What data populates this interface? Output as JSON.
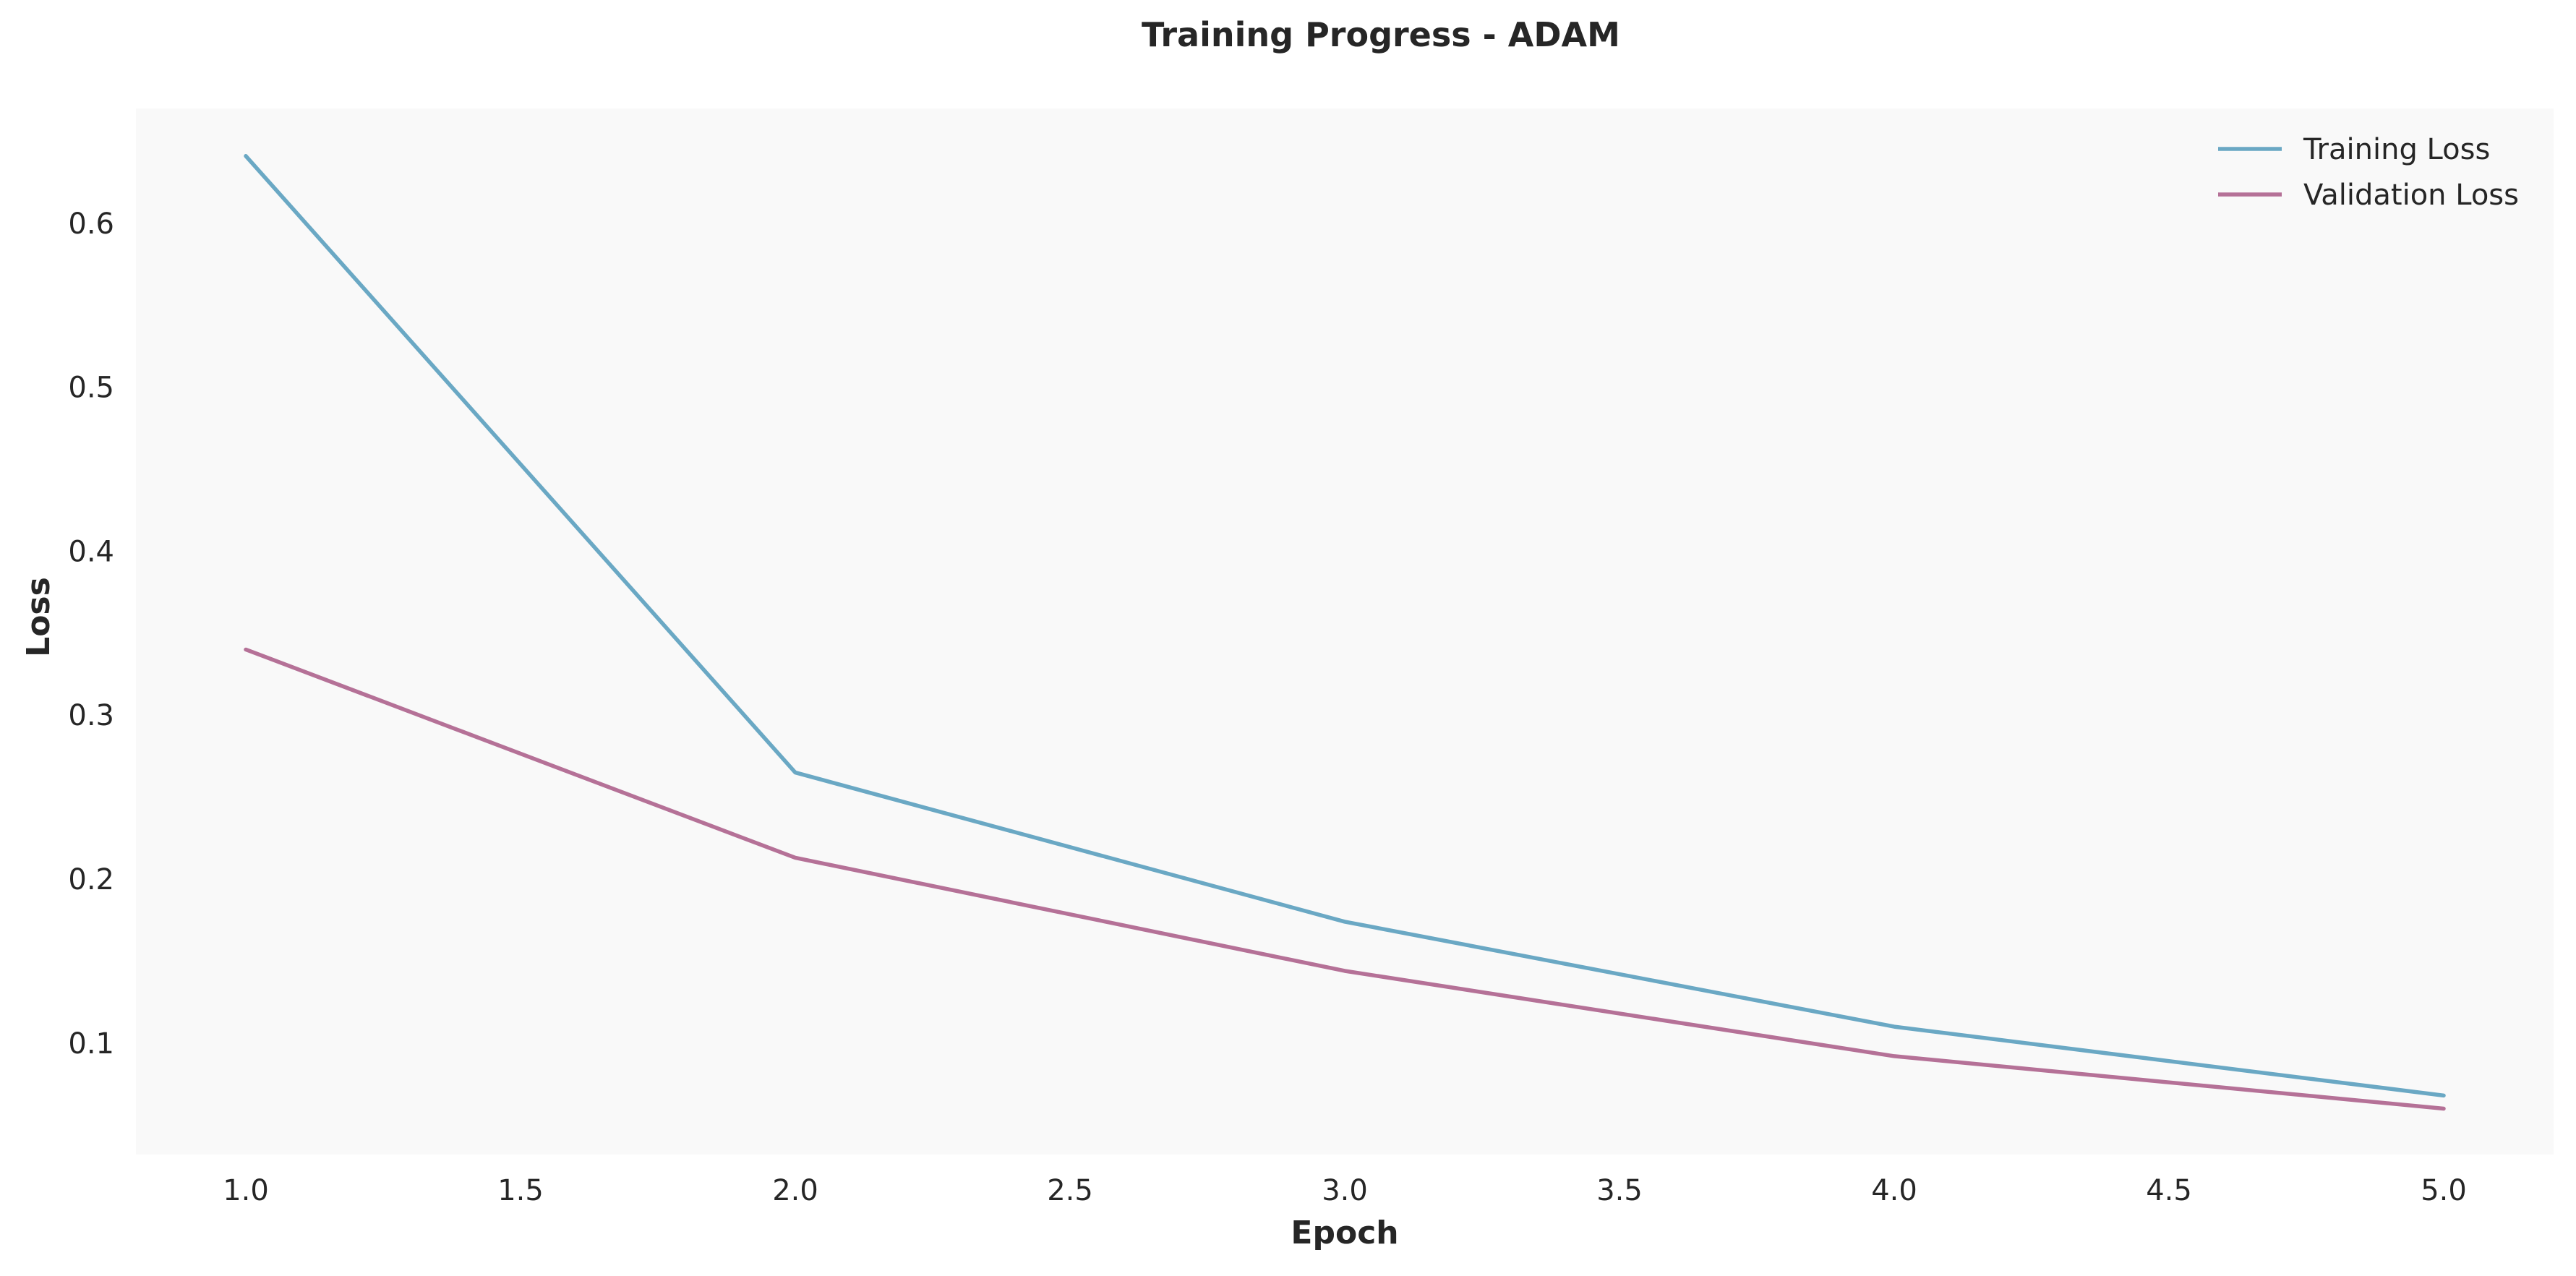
{
  "chart_data": {
    "type": "line",
    "title": "Training Progress - ADAM",
    "xlabel": "Epoch",
    "ylabel": "Loss",
    "x": [
      1.0,
      2.0,
      3.0,
      4.0,
      5.0
    ],
    "xlim": [
      0.8,
      5.2
    ],
    "ylim": [
      0.032,
      0.67
    ],
    "xticks": [
      1.0,
      1.5,
      2.0,
      2.5,
      3.0,
      3.5,
      4.0,
      4.5,
      5.0
    ],
    "xtick_labels": [
      "1.0",
      "1.5",
      "2.0",
      "2.5",
      "3.0",
      "3.5",
      "4.0",
      "4.5",
      "5.0"
    ],
    "yticks": [
      0.1,
      0.2,
      0.3,
      0.4,
      0.5,
      0.6
    ],
    "ytick_labels": [
      "0.1",
      "0.2",
      "0.3",
      "0.4",
      "0.5",
      "0.6"
    ],
    "grid": false,
    "legend_position": "top-right",
    "plot_background": "#f9f9f9",
    "series": [
      {
        "name": "Training Loss",
        "color": "#6aa8c4",
        "values": [
          0.641,
          0.265,
          0.174,
          0.11,
          0.068
        ]
      },
      {
        "name": "Validation Loss",
        "color": "#b57197",
        "values": [
          0.34,
          0.213,
          0.144,
          0.092,
          0.06
        ]
      }
    ]
  }
}
